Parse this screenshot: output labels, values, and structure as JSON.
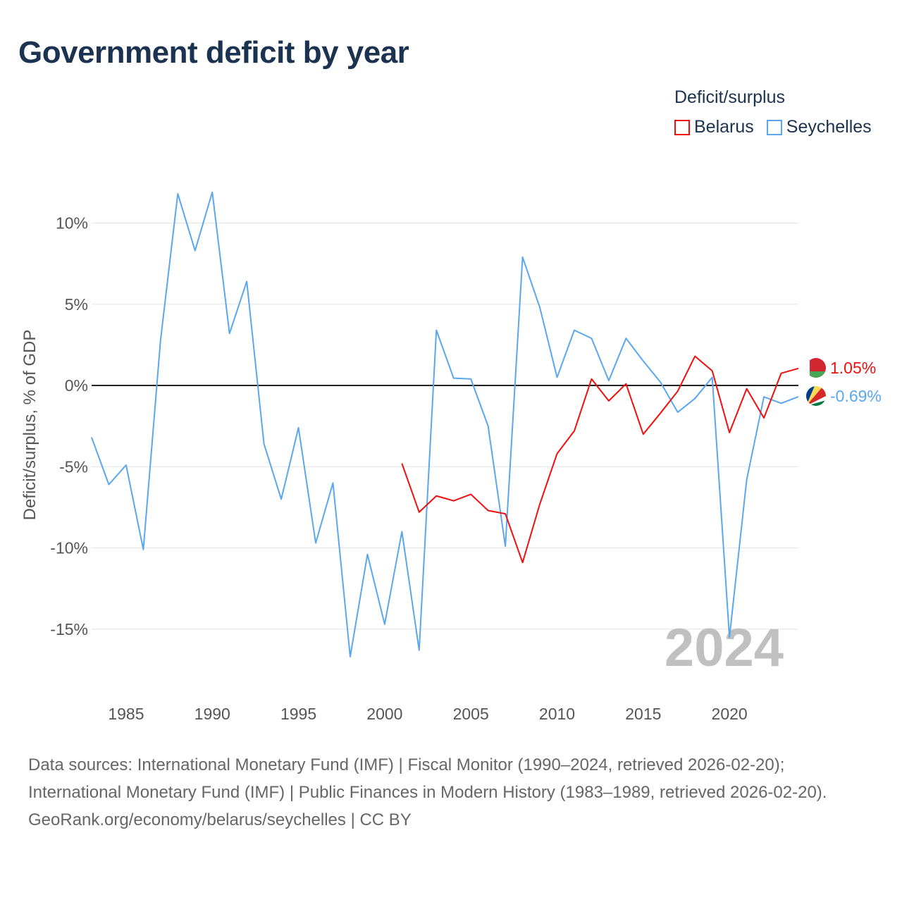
{
  "title": "Government deficit by year",
  "legend": {
    "title": "Deficit/surplus",
    "items": [
      "Belarus",
      "Seychelles"
    ]
  },
  "colors": {
    "Belarus": "#ee0f0f",
    "Seychelles": "#5aa7ee"
  },
  "chart_data": {
    "type": "line",
    "title": "Government deficit by year",
    "xlabel": "",
    "ylabel": "Deficit/surplus, % of GDP",
    "xlim": [
      1983,
      2024
    ],
    "ylim": [
      -18,
      13
    ],
    "x_ticks": [
      1985,
      1990,
      1995,
      2000,
      2005,
      2010,
      2015,
      2020
    ],
    "y_ticks": [
      10,
      5,
      0,
      -5,
      -10,
      -15
    ],
    "y_tick_labels": [
      "10%",
      "5%",
      "0%",
      "-5%",
      "-10%",
      "-15%"
    ],
    "grid": true,
    "legend_position": "top-right",
    "year_watermark": "2024",
    "series": [
      {
        "name": "Seychelles",
        "end_label": "-0.69%",
        "x": [
          1983,
          1984,
          1985,
          1986,
          1987,
          1988,
          1989,
          1990,
          1991,
          1992,
          1993,
          1994,
          1995,
          1996,
          1997,
          1998,
          1999,
          2000,
          2001,
          2002,
          2003,
          2004,
          2005,
          2006,
          2007,
          2008,
          2009,
          2010,
          2011,
          2012,
          2013,
          2014,
          2015,
          2016,
          2017,
          2018,
          2019,
          2020,
          2021,
          2022,
          2023,
          2024
        ],
        "values": [
          -3.2,
          -6.1,
          -4.9,
          -10.1,
          2.8,
          11.8,
          8.3,
          11.9,
          3.2,
          6.4,
          -3.6,
          -7.0,
          -2.6,
          -9.7,
          -6.0,
          -16.7,
          -10.4,
          -14.7,
          -9.0,
          -16.3,
          3.4,
          0.45,
          0.4,
          -2.5,
          -9.9,
          7.9,
          4.8,
          0.5,
          3.4,
          2.9,
          0.3,
          2.9,
          1.5,
          0.2,
          -1.65,
          -0.8,
          0.5,
          -15.5,
          -5.8,
          -0.7,
          -1.1,
          -0.69
        ]
      },
      {
        "name": "Belarus",
        "end_label": "1.05%",
        "x": [
          2001,
          2002,
          2003,
          2004,
          2005,
          2006,
          2007,
          2008,
          2009,
          2010,
          2011,
          2012,
          2013,
          2014,
          2015,
          2016,
          2017,
          2018,
          2019,
          2020,
          2021,
          2022,
          2023,
          2024
        ],
        "values": [
          -4.8,
          -7.8,
          -6.8,
          -7.1,
          -6.7,
          -7.7,
          -7.9,
          -10.9,
          -7.3,
          -4.2,
          -2.8,
          0.4,
          -0.95,
          0.1,
          -3.0,
          -1.7,
          -0.35,
          1.8,
          0.9,
          -2.9,
          -0.2,
          -2.0,
          0.75,
          1.05
        ]
      }
    ]
  },
  "footer": {
    "sources": "Data sources: International Monetary Fund (IMF) | Fiscal Monitor (1990–2024, retrieved 2026-02-20); International Monetary Fund (IMF) | Public Finances in Modern History (1983–1989, retrieved 2026-02-20).",
    "credit": "GeoRank.org/economy/belarus/seychelles | CC BY"
  }
}
